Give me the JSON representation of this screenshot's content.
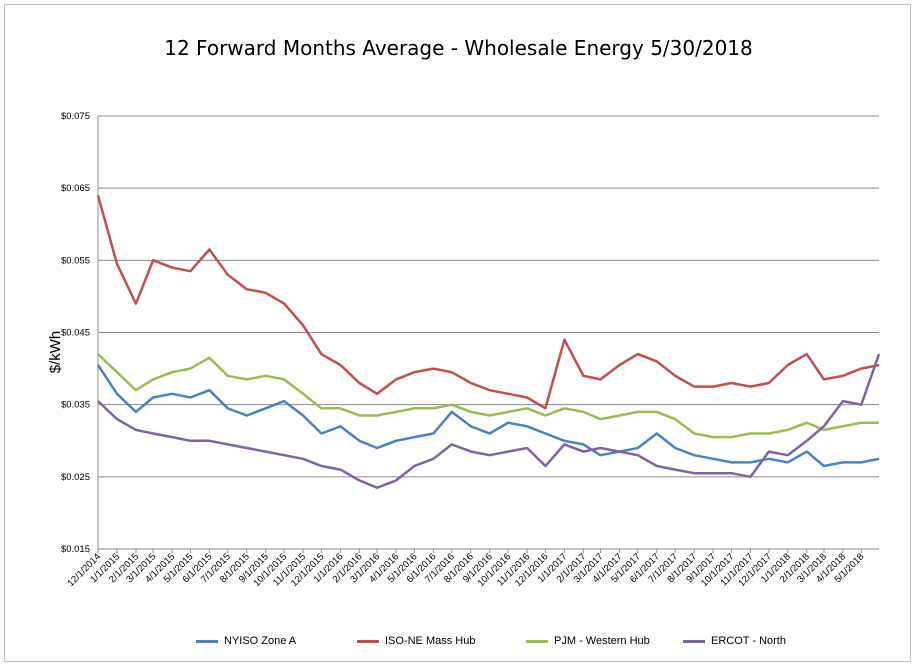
{
  "chart_data": {
    "type": "line",
    "title": "12 Forward Months Average - Wholesale Energy 5/30/2018",
    "xlabel": "",
    "ylabel": "$/kWh",
    "ylim": [
      0.015,
      0.075
    ],
    "yticks": [
      "$0.015",
      "$0.025",
      "$0.035",
      "$0.045",
      "$0.055",
      "$0.065",
      "$0.075"
    ],
    "ytick_values": [
      0.015,
      0.025,
      0.035,
      0.045,
      0.055,
      0.065,
      0.075
    ],
    "xlim": [
      "2014-12-01",
      "2018-05-30"
    ],
    "xticks": [
      "12/1/2014",
      "1/1/2015",
      "2/1/2015",
      "3/1/2015",
      "4/1/2015",
      "5/1/2015",
      "6/1/2015",
      "7/1/2015",
      "8/1/2015",
      "9/1/2015",
      "10/1/2015",
      "11/1/2015",
      "12/1/2015",
      "1/1/2016",
      "2/1/2016",
      "3/1/2016",
      "4/1/2016",
      "5/1/2016",
      "6/1/2016",
      "7/1/2016",
      "8/1/2016",
      "9/1/2016",
      "10/1/2016",
      "11/1/2016",
      "12/1/2016",
      "1/1/2017",
      "2/1/2017",
      "3/1/2017",
      "4/1/2017",
      "5/1/2017",
      "6/1/2017",
      "7/1/2017",
      "8/1/2017",
      "9/1/2017",
      "10/1/2017",
      "11/1/2017",
      "12/1/2017",
      "1/1/2018",
      "2/1/2018",
      "3/1/2018",
      "4/1/2018",
      "5/1/2018"
    ],
    "grid": true,
    "legend": "bottom",
    "series": [
      {
        "name": "NYISO Zone A",
        "color": "#4f81bd",
        "x": [
          "2014-12-01",
          "2015-01-01",
          "2015-02-01",
          "2015-03-01",
          "2015-04-01",
          "2015-05-01",
          "2015-06-01",
          "2015-07-01",
          "2015-08-01",
          "2015-09-01",
          "2015-10-01",
          "2015-11-01",
          "2015-12-01",
          "2016-01-01",
          "2016-02-01",
          "2016-03-01",
          "2016-04-01",
          "2016-05-01",
          "2016-06-01",
          "2016-07-01",
          "2016-08-01",
          "2016-09-01",
          "2016-10-01",
          "2016-11-01",
          "2016-12-01",
          "2017-01-01",
          "2017-02-01",
          "2017-03-01",
          "2017-04-01",
          "2017-05-01",
          "2017-06-01",
          "2017-07-01",
          "2017-08-01",
          "2017-09-01",
          "2017-10-01",
          "2017-11-01",
          "2017-12-01",
          "2018-01-01",
          "2018-02-01",
          "2018-03-01",
          "2018-04-01",
          "2018-05-01",
          "2018-05-30"
        ],
        "values": [
          0.0405,
          0.0365,
          0.034,
          0.036,
          0.0365,
          0.036,
          0.037,
          0.0345,
          0.0335,
          0.0345,
          0.0355,
          0.0335,
          0.031,
          0.032,
          0.03,
          0.029,
          0.03,
          0.0305,
          0.031,
          0.034,
          0.032,
          0.031,
          0.0325,
          0.032,
          0.031,
          0.03,
          0.0295,
          0.028,
          0.0285,
          0.029,
          0.031,
          0.029,
          0.028,
          0.0275,
          0.027,
          0.027,
          0.0275,
          0.027,
          0.0285,
          0.0265,
          0.027,
          0.027,
          0.0275
        ]
      },
      {
        "name": "ISO-NE Mass Hub",
        "color": "#c0504d",
        "x": [
          "2014-12-01",
          "2015-01-01",
          "2015-02-01",
          "2015-03-01",
          "2015-04-01",
          "2015-05-01",
          "2015-06-01",
          "2015-07-01",
          "2015-08-01",
          "2015-09-01",
          "2015-10-01",
          "2015-11-01",
          "2015-12-01",
          "2016-01-01",
          "2016-02-01",
          "2016-03-01",
          "2016-04-01",
          "2016-05-01",
          "2016-06-01",
          "2016-07-01",
          "2016-08-01",
          "2016-09-01",
          "2016-10-01",
          "2016-11-01",
          "2016-12-01",
          "2017-01-01",
          "2017-02-01",
          "2017-03-01",
          "2017-04-01",
          "2017-05-01",
          "2017-06-01",
          "2017-07-01",
          "2017-08-01",
          "2017-09-01",
          "2017-10-01",
          "2017-11-01",
          "2017-12-01",
          "2018-01-01",
          "2018-02-01",
          "2018-03-01",
          "2018-04-01",
          "2018-05-01",
          "2018-05-30"
        ],
        "values": [
          0.064,
          0.0545,
          0.049,
          0.055,
          0.054,
          0.0535,
          0.0565,
          0.053,
          0.051,
          0.0505,
          0.049,
          0.046,
          0.042,
          0.0405,
          0.038,
          0.0365,
          0.0385,
          0.0395,
          0.04,
          0.0395,
          0.038,
          0.037,
          0.0365,
          0.036,
          0.0345,
          0.044,
          0.039,
          0.0385,
          0.0405,
          0.042,
          0.041,
          0.039,
          0.0375,
          0.0375,
          0.038,
          0.0375,
          0.038,
          0.0405,
          0.042,
          0.0385,
          0.039,
          0.04,
          0.0405
        ]
      },
      {
        "name": "PJM - Western Hub",
        "color": "#9bbb59",
        "x": [
          "2014-12-01",
          "2015-01-01",
          "2015-02-01",
          "2015-03-01",
          "2015-04-01",
          "2015-05-01",
          "2015-06-01",
          "2015-07-01",
          "2015-08-01",
          "2015-09-01",
          "2015-10-01",
          "2015-11-01",
          "2015-12-01",
          "2016-01-01",
          "2016-02-01",
          "2016-03-01",
          "2016-04-01",
          "2016-05-01",
          "2016-06-01",
          "2016-07-01",
          "2016-08-01",
          "2016-09-01",
          "2016-10-01",
          "2016-11-01",
          "2016-12-01",
          "2017-01-01",
          "2017-02-01",
          "2017-03-01",
          "2017-04-01",
          "2017-05-01",
          "2017-06-01",
          "2017-07-01",
          "2017-08-01",
          "2017-09-01",
          "2017-10-01",
          "2017-11-01",
          "2017-12-01",
          "2018-01-01",
          "2018-02-01",
          "2018-03-01",
          "2018-04-01",
          "2018-05-01",
          "2018-05-30"
        ],
        "values": [
          0.042,
          0.0395,
          0.037,
          0.0385,
          0.0395,
          0.04,
          0.0415,
          0.039,
          0.0385,
          0.039,
          0.0385,
          0.0365,
          0.0345,
          0.0345,
          0.0335,
          0.0335,
          0.034,
          0.0345,
          0.0345,
          0.035,
          0.034,
          0.0335,
          0.034,
          0.0345,
          0.0335,
          0.0345,
          0.034,
          0.033,
          0.0335,
          0.034,
          0.034,
          0.033,
          0.031,
          0.0305,
          0.0305,
          0.031,
          0.031,
          0.0315,
          0.0325,
          0.0315,
          0.032,
          0.0325,
          0.0325
        ]
      },
      {
        "name": "ERCOT - North",
        "color": "#8064a2",
        "x": [
          "2014-12-01",
          "2015-01-01",
          "2015-02-01",
          "2015-03-01",
          "2015-04-01",
          "2015-05-01",
          "2015-06-01",
          "2015-07-01",
          "2015-08-01",
          "2015-09-01",
          "2015-10-01",
          "2015-11-01",
          "2015-12-01",
          "2016-01-01",
          "2016-02-01",
          "2016-03-01",
          "2016-04-01",
          "2016-05-01",
          "2016-06-01",
          "2016-07-01",
          "2016-08-01",
          "2016-09-01",
          "2016-10-01",
          "2016-11-01",
          "2016-12-01",
          "2017-01-01",
          "2017-02-01",
          "2017-03-01",
          "2017-04-01",
          "2017-05-01",
          "2017-06-01",
          "2017-07-01",
          "2017-08-01",
          "2017-09-01",
          "2017-10-01",
          "2017-11-01",
          "2017-12-01",
          "2018-01-01",
          "2018-02-01",
          "2018-03-01",
          "2018-04-01",
          "2018-05-01",
          "2018-05-30"
        ],
        "values": [
          0.0355,
          0.033,
          0.0315,
          0.031,
          0.0305,
          0.03,
          0.03,
          0.0295,
          0.029,
          0.0285,
          0.028,
          0.0275,
          0.0265,
          0.026,
          0.0245,
          0.0235,
          0.0245,
          0.0265,
          0.0275,
          0.0295,
          0.0285,
          0.028,
          0.0285,
          0.029,
          0.0265,
          0.0295,
          0.0285,
          0.029,
          0.0285,
          0.028,
          0.0265,
          0.026,
          0.0255,
          0.0255,
          0.0255,
          0.025,
          0.0285,
          0.028,
          0.03,
          0.032,
          0.0355,
          0.035,
          0.042
        ]
      }
    ]
  }
}
